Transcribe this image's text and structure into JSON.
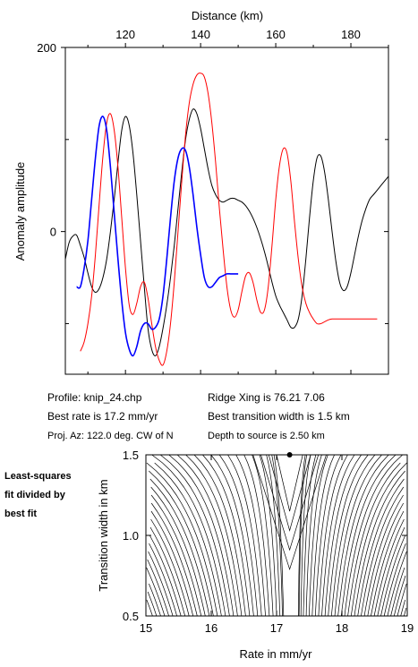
{
  "chart_data": [
    {
      "type": "line",
      "xlabel": "Distance (km)",
      "ylabel": "Anomaly amplitude",
      "x_ticks": [
        120,
        140,
        160,
        180
      ],
      "y_ticks": [
        0,
        200
      ],
      "xlim": [
        104,
        190
      ],
      "ylim": [
        -155,
        200
      ],
      "series": [
        {
          "color": "#000000",
          "x": [
            104,
            105,
            106,
            107,
            108,
            109,
            110,
            111,
            112,
            113,
            114,
            115,
            116,
            117,
            118,
            119,
            120,
            121,
            122,
            123,
            124,
            125,
            126,
            127,
            128,
            129,
            130,
            131,
            132,
            133,
            134,
            135,
            136,
            137,
            138,
            139,
            140,
            141,
            142,
            143,
            144,
            145,
            146,
            147,
            148,
            149,
            150,
            151,
            152,
            153,
            154,
            155,
            156,
            157,
            158,
            159,
            160,
            161,
            162,
            163,
            164,
            165,
            166,
            167,
            168,
            169,
            170,
            171,
            172,
            173,
            174,
            175,
            176,
            177,
            178,
            179,
            180,
            181,
            182,
            183,
            184,
            185,
            186,
            187,
            188,
            189,
            190
          ],
          "y": [
            -30,
            -12,
            -5,
            -4,
            -15,
            -28,
            -45,
            -60,
            -66,
            -62,
            -50,
            -30,
            0,
            35,
            75,
            110,
            125,
            115,
            85,
            40,
            -10,
            -60,
            -105,
            -128,
            -135,
            -125,
            -105,
            -80,
            -50,
            -15,
            25,
            65,
            100,
            122,
            133,
            128,
            112,
            90,
            68,
            50,
            40,
            34,
            32,
            34,
            36,
            36,
            34,
            32,
            28,
            22,
            14,
            4,
            -8,
            -22,
            -38,
            -55,
            -70,
            -80,
            -88,
            -96,
            -104,
            -104,
            -95,
            -70,
            -30,
            15,
            55,
            80,
            82,
            65,
            35,
            0,
            -32,
            -55,
            -64,
            -60,
            -45,
            -25,
            -5,
            12,
            25,
            35,
            40,
            45,
            50,
            55,
            60
          ]
        },
        {
          "color": "#ff0000",
          "x": [
            108,
            109,
            110,
            111,
            112,
            113,
            114,
            115,
            116,
            117,
            118,
            119,
            120,
            121,
            122,
            123,
            124,
            125,
            126,
            127,
            128,
            129,
            130,
            131,
            132,
            133,
            134,
            135,
            136,
            137,
            138,
            139,
            140,
            141,
            142,
            143,
            144,
            145,
            146,
            147,
            148,
            149,
            150,
            151,
            152,
            153,
            154,
            155,
            156,
            157,
            158,
            159,
            160,
            161,
            162,
            163,
            164,
            165,
            166,
            167,
            168,
            169,
            170,
            171,
            172,
            173,
            174,
            175,
            176,
            177,
            178,
            179,
            180,
            181,
            182,
            183,
            184,
            185,
            186,
            187
          ],
          "y": [
            -130,
            -120,
            -100,
            -70,
            -25,
            30,
            82,
            118,
            128,
            110,
            70,
            15,
            -40,
            -80,
            -90,
            -78,
            -60,
            -55,
            -72,
            -100,
            -125,
            -140,
            -145,
            -130,
            -100,
            -55,
            0,
            55,
            105,
            140,
            160,
            170,
            172,
            168,
            150,
            118,
            75,
            25,
            -20,
            -60,
            -85,
            -93,
            -85,
            -65,
            -48,
            -45,
            -56,
            -75,
            -88,
            -85,
            -60,
            -15,
            35,
            72,
            90,
            85,
            55,
            10,
            -30,
            -60,
            -78,
            -88,
            -95,
            -100,
            -100,
            -98,
            -96,
            -95,
            -95,
            -95,
            -95,
            -95,
            -95,
            -95,
            -95,
            -95,
            -95,
            -95,
            -95,
            -95
          ]
        },
        {
          "color": "#0000ff",
          "x": [
            107,
            108,
            109,
            110,
            111,
            112,
            113,
            114,
            115,
            116,
            117,
            118,
            119,
            120,
            121,
            122,
            123,
            124,
            125,
            126,
            127,
            128,
            129,
            130,
            131,
            132,
            133,
            134,
            135,
            136,
            137,
            138,
            139,
            140,
            141,
            142,
            143,
            144,
            145,
            146,
            147,
            148,
            149,
            150
          ],
          "y": [
            -60,
            -60,
            -40,
            -10,
            35,
            80,
            115,
            125,
            110,
            70,
            20,
            -30,
            -75,
            -110,
            -128,
            -135,
            -125,
            -108,
            -100,
            -100,
            -106,
            -104,
            -95,
            -70,
            -30,
            15,
            55,
            80,
            90,
            88,
            70,
            40,
            5,
            -25,
            -50,
            -60,
            -60,
            -55,
            -50,
            -48,
            -46,
            -46,
            -46,
            -46
          ]
        }
      ]
    },
    {
      "type": "contour",
      "xlabel": "Rate in mm/yr",
      "ylabel": "Transition width in km",
      "x_ticks": [
        "15",
        "16",
        "17",
        "18",
        "19"
      ],
      "y_ticks": [
        "0.5",
        "1.0",
        "1.5"
      ],
      "xlim": [
        15,
        19
      ],
      "ylim": [
        0.5,
        1.5
      ],
      "best_fit": {
        "rate": 17.2,
        "width": 1.5
      },
      "row_label": [
        "Least-squares",
        "fit divided by",
        "best fit"
      ]
    }
  ],
  "info": {
    "profile": "Profile: knip_24.chp",
    "best_rate": "Best rate is 17.2 mm/yr",
    "proj_az": "Proj. Az: 122.0 deg. CW of N",
    "ridge_xing": "Ridge Xing is 76.21 7.06",
    "best_width": "Best transition width is 1.5 km",
    "depth": "Depth to source is   2.50 km"
  }
}
